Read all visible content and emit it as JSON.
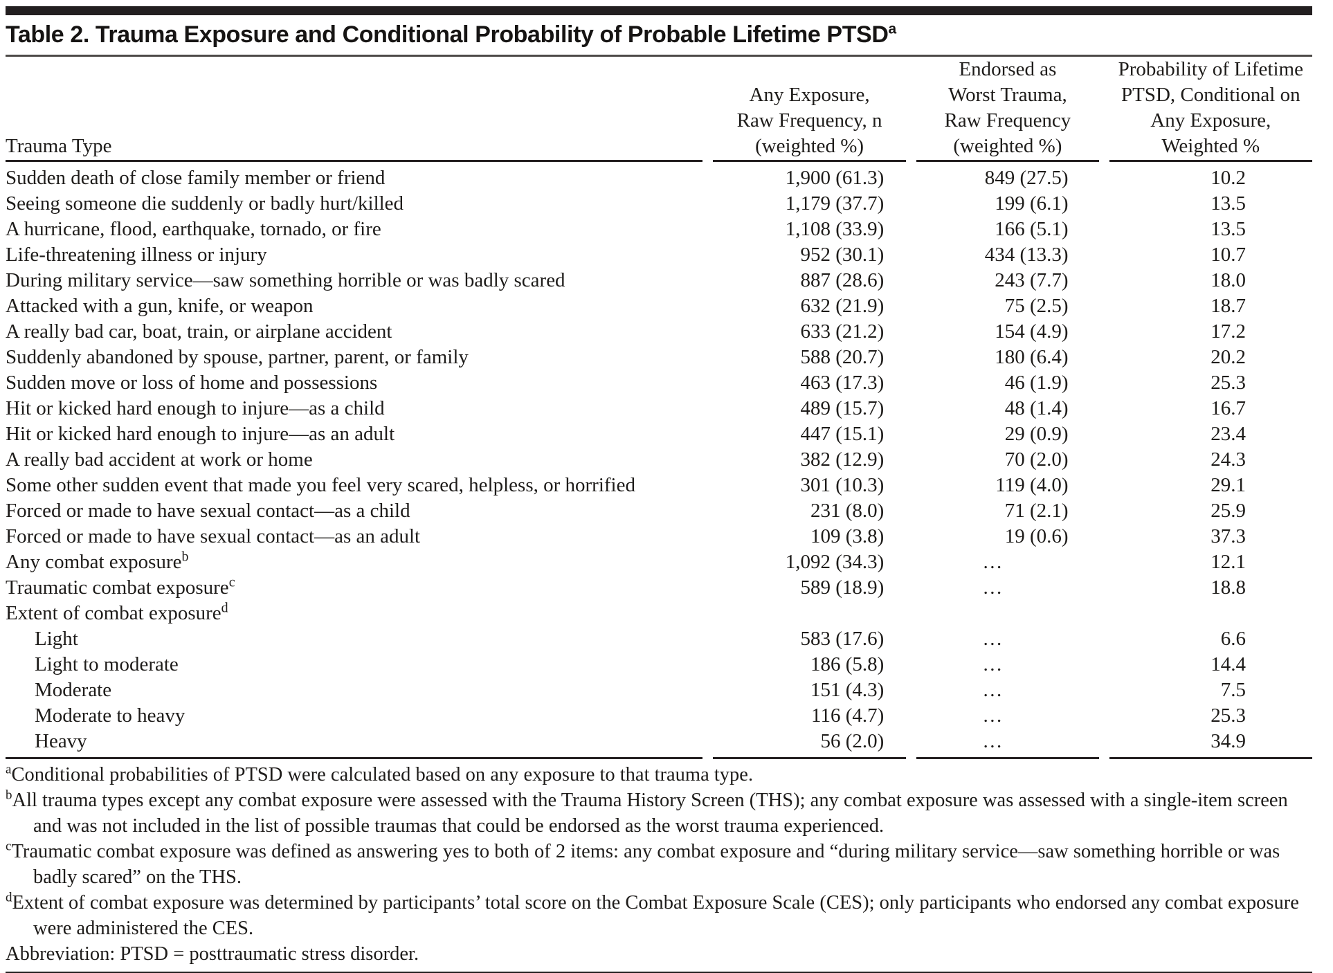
{
  "title": {
    "text": "Table 2. Trauma Exposure and Conditional Probability of Probable Lifetime PTSD",
    "superscript": "a"
  },
  "colors": {
    "text": "#1e1c1a",
    "rule": "#231f20",
    "background": "#ffffff"
  },
  "table": {
    "ellipsis": "…",
    "header": {
      "col1": "Trauma Type",
      "col2_lines": [
        "Any Exposure,",
        "Raw Frequency, n",
        "(weighted %)"
      ],
      "col3_lines": [
        "Endorsed as",
        "Worst Trauma,",
        "Raw Frequency",
        "(weighted %)"
      ],
      "col4_lines": [
        "Probability of Lifetime",
        "PTSD, Conditional on",
        "Any Exposure,",
        "Weighted %"
      ]
    },
    "rows": [
      {
        "label": "Sudden death of close family member or friend",
        "sup": "",
        "indent": false,
        "any_exposure": "1,900 (61.3)",
        "worst_trauma": "849 (27.5)",
        "probability": "10.2"
      },
      {
        "label": "Seeing someone die suddenly or badly hurt/killed",
        "sup": "",
        "indent": false,
        "any_exposure": "1,179 (37.7)",
        "worst_trauma": "199 (6.1)",
        "probability": "13.5"
      },
      {
        "label": "A hurricane, flood, earthquake, tornado, or fire",
        "sup": "",
        "indent": false,
        "any_exposure": "1,108 (33.9)",
        "worst_trauma": "166 (5.1)",
        "probability": "13.5"
      },
      {
        "label": "Life-threatening illness or injury",
        "sup": "",
        "indent": false,
        "any_exposure": "952 (30.1)",
        "worst_trauma": "434 (13.3)",
        "probability": "10.7"
      },
      {
        "label": "During military service—saw something horrible or was badly scared",
        "sup": "",
        "indent": false,
        "any_exposure": "887 (28.6)",
        "worst_trauma": "243 (7.7)",
        "probability": "18.0"
      },
      {
        "label": "Attacked with a gun, knife, or weapon",
        "sup": "",
        "indent": false,
        "any_exposure": "632 (21.9)",
        "worst_trauma": "75 (2.5)",
        "probability": "18.7"
      },
      {
        "label": "A really bad car, boat, train, or airplane accident",
        "sup": "",
        "indent": false,
        "any_exposure": "633 (21.2)",
        "worst_trauma": "154 (4.9)",
        "probability": "17.2"
      },
      {
        "label": "Suddenly abandoned by spouse, partner, parent, or family",
        "sup": "",
        "indent": false,
        "any_exposure": "588 (20.7)",
        "worst_trauma": "180 (6.4)",
        "probability": "20.2"
      },
      {
        "label": "Sudden move or loss of home and possessions",
        "sup": "",
        "indent": false,
        "any_exposure": "463 (17.3)",
        "worst_trauma": "46 (1.9)",
        "probability": "25.3"
      },
      {
        "label": "Hit or kicked hard enough to injure—as a child",
        "sup": "",
        "indent": false,
        "any_exposure": "489 (15.7)",
        "worst_trauma": "48 (1.4)",
        "probability": "16.7"
      },
      {
        "label": "Hit or kicked hard enough to injure—as an adult",
        "sup": "",
        "indent": false,
        "any_exposure": "447 (15.1)",
        "worst_trauma": "29 (0.9)",
        "probability": "23.4"
      },
      {
        "label": "A really bad accident at work or home",
        "sup": "",
        "indent": false,
        "any_exposure": "382 (12.9)",
        "worst_trauma": "70 (2.0)",
        "probability": "24.3"
      },
      {
        "label": "Some other sudden event that made you feel very scared, helpless, or horrified",
        "sup": "",
        "indent": false,
        "any_exposure": "301 (10.3)",
        "worst_trauma": "119 (4.0)",
        "probability": "29.1"
      },
      {
        "label": "Forced or made to have sexual contact—as a child",
        "sup": "",
        "indent": false,
        "any_exposure": "231 (8.0)",
        "worst_trauma": "71 (2.1)",
        "probability": "25.9"
      },
      {
        "label": "Forced or made to have sexual contact—as an adult",
        "sup": "",
        "indent": false,
        "any_exposure": "109 (3.8)",
        "worst_trauma": "19 (0.6)",
        "probability": "37.3"
      },
      {
        "label": "Any combat exposure",
        "sup": "b",
        "indent": false,
        "any_exposure": "1,092 (34.3)",
        "worst_trauma": "…",
        "probability": "12.1"
      },
      {
        "label": "Traumatic combat exposure",
        "sup": "c",
        "indent": false,
        "any_exposure": "589 (18.9)",
        "worst_trauma": "…",
        "probability": "18.8"
      },
      {
        "label": "Extent of combat exposure",
        "sup": "d",
        "indent": false,
        "any_exposure": "",
        "worst_trauma": "",
        "probability": ""
      },
      {
        "label": "Light",
        "sup": "",
        "indent": true,
        "any_exposure": "583 (17.6)",
        "worst_trauma": "…",
        "probability": "6.6"
      },
      {
        "label": "Light to moderate",
        "sup": "",
        "indent": true,
        "any_exposure": "186 (5.8)",
        "worst_trauma": "…",
        "probability": "14.4"
      },
      {
        "label": "Moderate",
        "sup": "",
        "indent": true,
        "any_exposure": "151 (4.3)",
        "worst_trauma": "…",
        "probability": "7.5"
      },
      {
        "label": "Moderate to heavy",
        "sup": "",
        "indent": true,
        "any_exposure": "116 (4.7)",
        "worst_trauma": "…",
        "probability": "25.3"
      },
      {
        "label": "Heavy",
        "sup": "",
        "indent": true,
        "any_exposure": "56 (2.0)",
        "worst_trauma": "…",
        "probability": "34.9"
      }
    ]
  },
  "footnotes": [
    {
      "marker": "a",
      "text": "Conditional probabilities of PTSD were calculated based on any exposure to that trauma type."
    },
    {
      "marker": "b",
      "text": "All trauma types except any combat exposure were assessed with the Trauma History Screen (THS); any combat exposure was assessed with a single-item screen and was not included in the list of possible traumas that could be endorsed as the worst trauma experienced."
    },
    {
      "marker": "c",
      "text": "Traumatic combat exposure was defined as answering yes to both of 2 items: any combat exposure and “during military service—saw something horrible or was badly scared” on the THS."
    },
    {
      "marker": "d",
      "text": "Extent of combat exposure was determined by participants’ total score on the Combat Exposure Scale (CES); only participants who endorsed any combat exposure were administered the CES."
    },
    {
      "marker": "",
      "text": "Abbreviation: PTSD = posttraumatic stress disorder."
    }
  ]
}
